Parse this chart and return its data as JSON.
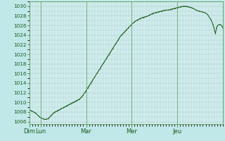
{
  "background_color": "#c0e8e8",
  "plot_bg_color": "#d0ecec",
  "line_color": "#1a5c1a",
  "grid_color": "#a8cccc",
  "tick_color": "#1a5c1a",
  "spine_color": "#5a9a5a",
  "ylim": [
    1005.5,
    1031.0
  ],
  "yticks": [
    1006,
    1008,
    1010,
    1012,
    1014,
    1016,
    1018,
    1020,
    1022,
    1024,
    1026,
    1028,
    1030
  ],
  "day_labels": [
    "Dim",
    "Lun",
    "Mar",
    "Mer",
    "Jeu"
  ],
  "day_positions": [
    0,
    12,
    60,
    108,
    156
  ],
  "total_hours": 204,
  "pressure_data": [
    1008.5,
    1008.4,
    1008.3,
    1008.2,
    1008.1,
    1008.0,
    1007.9,
    1007.8,
    1007.6,
    1007.4,
    1007.2,
    1007.0,
    1006.9,
    1006.8,
    1006.7,
    1006.6,
    1006.55,
    1006.5,
    1006.5,
    1006.5,
    1006.6,
    1006.7,
    1006.9,
    1007.1,
    1007.3,
    1007.5,
    1007.7,
    1007.9,
    1008.0,
    1008.1,
    1008.2,
    1008.3,
    1008.4,
    1008.5,
    1008.6,
    1008.7,
    1008.8,
    1008.9,
    1009.0,
    1009.1,
    1009.2,
    1009.3,
    1009.4,
    1009.5,
    1009.6,
    1009.7,
    1009.8,
    1009.9,
    1010.0,
    1010.1,
    1010.2,
    1010.3,
    1010.4,
    1010.5,
    1010.6,
    1010.7,
    1010.9,
    1011.1,
    1011.3,
    1011.5,
    1011.8,
    1012.1,
    1012.4,
    1012.7,
    1013.0,
    1013.3,
    1013.6,
    1013.9,
    1014.2,
    1014.5,
    1014.8,
    1015.1,
    1015.4,
    1015.7,
    1016.0,
    1016.3,
    1016.6,
    1016.9,
    1017.2,
    1017.5,
    1017.8,
    1018.1,
    1018.4,
    1018.7,
    1019.0,
    1019.3,
    1019.6,
    1019.9,
    1020.2,
    1020.5,
    1020.8,
    1021.1,
    1021.4,
    1021.7,
    1022.0,
    1022.3,
    1022.6,
    1022.9,
    1023.2,
    1023.5,
    1023.8,
    1024.0,
    1024.2,
    1024.4,
    1024.6,
    1024.8,
    1025.0,
    1025.2,
    1025.4,
    1025.6,
    1025.8,
    1026.0,
    1026.2,
    1026.4,
    1026.55,
    1026.7,
    1026.85,
    1027.0,
    1027.1,
    1027.2,
    1027.3,
    1027.4,
    1027.5,
    1027.6,
    1027.65,
    1027.7,
    1027.75,
    1027.8,
    1027.85,
    1027.9,
    1028.0,
    1028.1,
    1028.2,
    1028.3,
    1028.4,
    1028.5,
    1028.55,
    1028.6,
    1028.65,
    1028.7,
    1028.75,
    1028.8,
    1028.85,
    1028.9,
    1028.95,
    1029.0,
    1029.05,
    1029.1,
    1029.15,
    1029.2,
    1029.2,
    1029.2,
    1029.2,
    1029.25,
    1029.3,
    1029.35,
    1029.4,
    1029.45,
    1029.5,
    1029.55,
    1029.6,
    1029.65,
    1029.7,
    1029.75,
    1029.8,
    1029.85,
    1029.9,
    1029.95,
    1030.0,
    1030.0,
    1030.0,
    1030.0,
    1030.0,
    1029.95,
    1029.9,
    1029.85,
    1029.8,
    1029.75,
    1029.7,
    1029.6,
    1029.5,
    1029.4,
    1029.3,
    1029.2,
    1029.1,
    1029.05,
    1029.0,
    1028.95,
    1028.9,
    1028.85,
    1028.8,
    1028.75,
    1028.7,
    1028.6,
    1028.5,
    1028.35,
    1028.1,
    1027.8,
    1027.5,
    1027.2,
    1026.8,
    1026.3,
    1025.7,
    1025.0,
    1024.3,
    1025.4,
    1025.9,
    1026.1,
    1026.2,
    1026.2,
    1026.1,
    1025.9,
    1025.5
  ]
}
